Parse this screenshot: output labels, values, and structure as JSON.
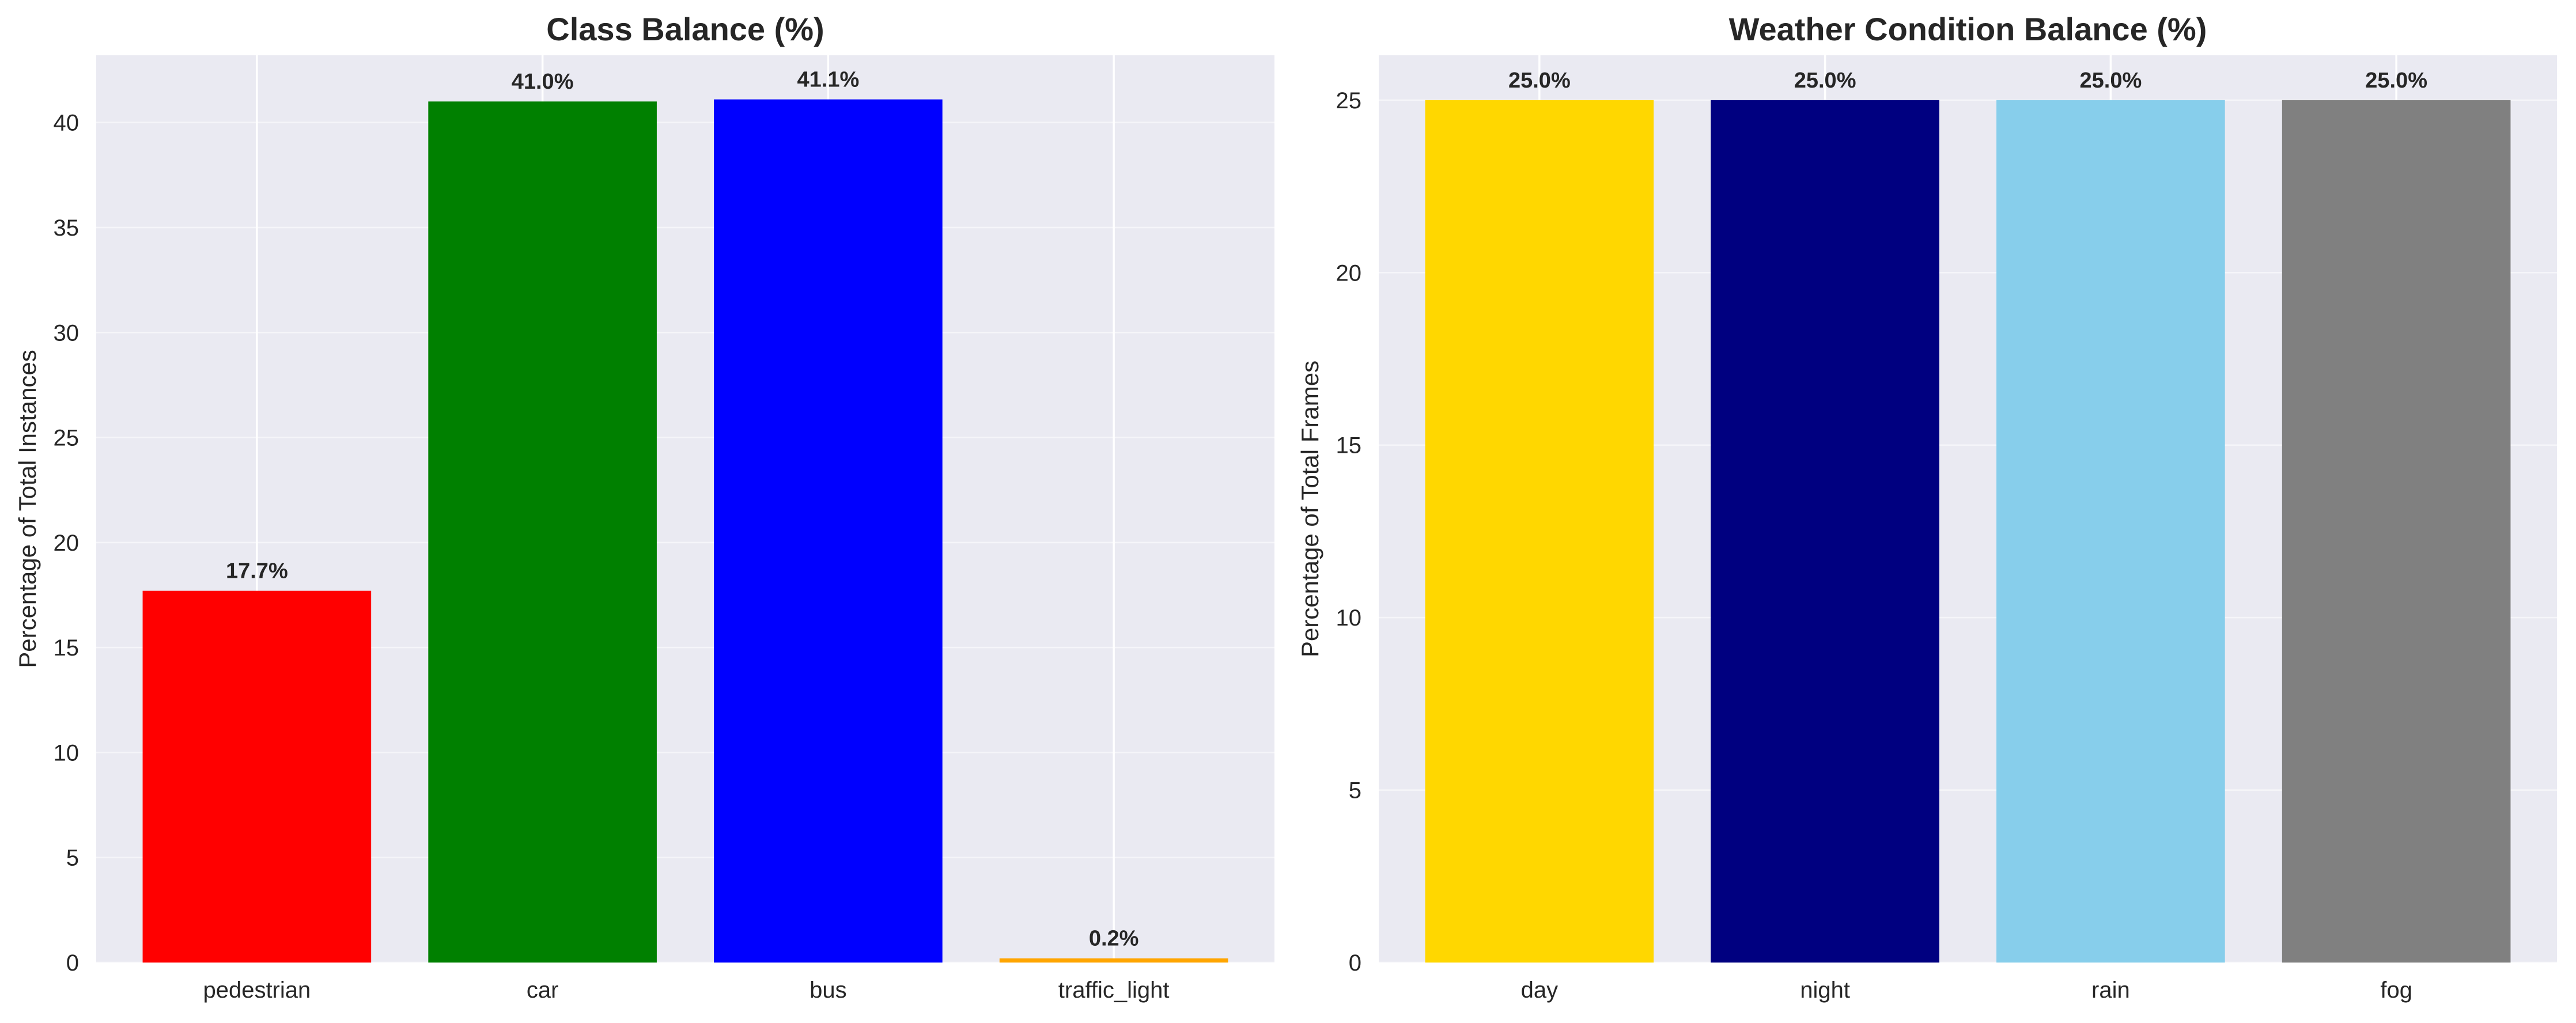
{
  "chart_data": [
    {
      "type": "bar",
      "title": "Class Balance (%)",
      "xlabel": "",
      "ylabel": "Percentage of Total Instances",
      "categories": [
        "pedestrian",
        "car",
        "bus",
        "traffic_light"
      ],
      "values": [
        17.7,
        41.0,
        41.1,
        0.2
      ],
      "value_labels": [
        "17.7%",
        "41.0%",
        "41.1%",
        "0.2%"
      ],
      "colors": [
        "#ff0000",
        "#008000",
        "#0000ff",
        "#ffa500"
      ],
      "ylim": [
        0,
        43.2
      ],
      "yticks": [
        0,
        5,
        10,
        15,
        20,
        25,
        30,
        35,
        40
      ],
      "grid": true,
      "background": "#eaeaf2"
    },
    {
      "type": "bar",
      "title": "Weather Condition Balance (%)",
      "xlabel": "",
      "ylabel": "Percentage of Total Frames",
      "categories": [
        "day",
        "night",
        "rain",
        "fog"
      ],
      "values": [
        25.0,
        25.0,
        25.0,
        25.0
      ],
      "value_labels": [
        "25.0%",
        "25.0%",
        "25.0%",
        "25.0%"
      ],
      "colors": [
        "#ffd700",
        "#000080",
        "#87ceeb",
        "#808080"
      ],
      "ylim": [
        0,
        26.3
      ],
      "yticks": [
        0,
        5,
        10,
        15,
        20,
        25
      ],
      "grid": true,
      "background": "#eaeaf2"
    }
  ]
}
